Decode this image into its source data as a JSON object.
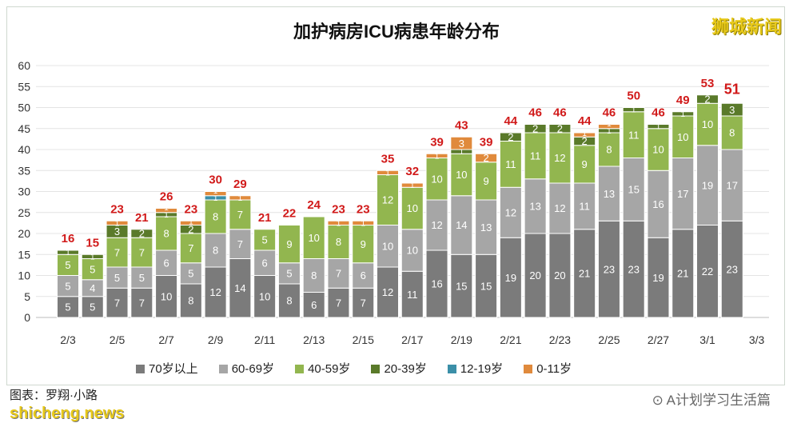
{
  "watermark_logo": "狮城新闻",
  "footer": {
    "credit": "图表：罗翔·小路",
    "site": "shicheng.news",
    "wechat": "A计划学习生活篇"
  },
  "chart_data": {
    "type": "bar",
    "stacked": true,
    "title": "加护病房ICU病患年龄分布",
    "ylim": [
      0,
      60
    ],
    "yticks": [
      0,
      5,
      10,
      15,
      20,
      25,
      30,
      35,
      40,
      45,
      50,
      55,
      60
    ],
    "xtick_labels": [
      "2/3",
      "2/5",
      "2/7",
      "2/9",
      "2/11",
      "2/13",
      "2/15",
      "2/17",
      "2/19",
      "2/21",
      "2/23",
      "2/25",
      "2/27",
      "3/1",
      "3/3"
    ],
    "categories": [
      "2/3",
      "2/4",
      "2/5",
      "2/6",
      "2/7",
      "2/8",
      "2/9",
      "2/10",
      "2/11",
      "2/12",
      "2/13",
      "2/14",
      "2/15",
      "2/16",
      "2/17",
      "2/18",
      "2/19",
      "2/20",
      "2/21",
      "2/22",
      "2/23",
      "2/24",
      "2/25",
      "2/26",
      "2/27",
      "2/28",
      "3/1",
      "3/2"
    ],
    "grid": true,
    "legend_position": "bottom",
    "series": [
      {
        "name": "70岁以上",
        "color": "#7b7b7b",
        "values": [
          5,
          5,
          7,
          7,
          10,
          8,
          12,
          14,
          10,
          8,
          6,
          7,
          7,
          12,
          11,
          16,
          15,
          15,
          19,
          20,
          20,
          21,
          23,
          23,
          19,
          21,
          22,
          23
        ]
      },
      {
        "name": "60-69岁",
        "color": "#a6a6a6",
        "values": [
          5,
          4,
          5,
          5,
          6,
          5,
          8,
          7,
          6,
          5,
          8,
          7,
          6,
          10,
          10,
          12,
          14,
          13,
          12,
          13,
          12,
          11,
          13,
          15,
          16,
          17,
          19,
          17
        ]
      },
      {
        "name": "40-59岁",
        "color": "#92b64f",
        "values": [
          5,
          5,
          7,
          7,
          8,
          7,
          8,
          7,
          5,
          9,
          10,
          8,
          9,
          12,
          10,
          10,
          10,
          9,
          11,
          11,
          12,
          9,
          8,
          11,
          10,
          10,
          10,
          8
        ]
      },
      {
        "name": "20-39岁",
        "color": "#5a7a2a",
        "values": [
          1,
          1,
          3,
          2,
          1,
          2,
          0,
          0,
          0,
          0,
          0,
          0,
          0,
          0,
          0,
          0,
          1,
          0,
          2,
          2,
          2,
          2,
          1,
          1,
          1,
          1,
          2,
          3
        ]
      },
      {
        "name": "12-19岁",
        "color": "#3b8fa8",
        "values": [
          0,
          0,
          0,
          0,
          0,
          0,
          1,
          0,
          0,
          0,
          0,
          0,
          0,
          0,
          0,
          0,
          0,
          0,
          0,
          0,
          0,
          0,
          0,
          0,
          0,
          0,
          0,
          0
        ]
      },
      {
        "name": "0-11岁",
        "color": "#e08a3c",
        "values": [
          0,
          0,
          1,
          0,
          1,
          1,
          1,
          1,
          0,
          0,
          0,
          1,
          1,
          1,
          1,
          1,
          3,
          2,
          0,
          0,
          0,
          1,
          1,
          0,
          0,
          0,
          0,
          0
        ]
      }
    ],
    "totals": [
      16,
      15,
      23,
      21,
      26,
      23,
      30,
      29,
      21,
      22,
      24,
      23,
      23,
      35,
      32,
      39,
      43,
      39,
      44,
      46,
      46,
      44,
      46,
      50,
      46,
      49,
      53,
      51
    ],
    "total_label_color": "#d11a1a"
  }
}
